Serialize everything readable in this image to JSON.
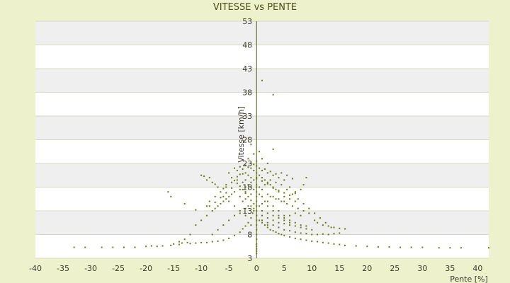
{
  "chart_data": {
    "type": "scatter",
    "title": "VITESSE vs PENTE",
    "xlabel": "Pente [%]",
    "ylabel": "Vitesse [km/h]",
    "xlim": [
      -40,
      42
    ],
    "ylim": [
      3,
      53
    ],
    "x_ticks": [
      "-40",
      "-35",
      "-30",
      "-25",
      "-20",
      "-15",
      "-10",
      "-5",
      "0",
      "5",
      "10",
      "15",
      "20",
      "25",
      "30",
      "35",
      "40"
    ],
    "y_ticks": [
      "3",
      "8",
      "13",
      "18",
      "23",
      "28",
      "33",
      "38",
      "43",
      "48",
      "53"
    ],
    "grid": true,
    "legend": "none",
    "colors": {
      "marker": "#6b7a10",
      "band_light": "#ffffff",
      "band_dark": "#efefef",
      "background": "#eef2cc",
      "axis": "#4d5a10"
    },
    "points": [
      [
        -33,
        5.3
      ],
      [
        -31,
        5.3
      ],
      [
        -28,
        5.3
      ],
      [
        -26,
        5.3
      ],
      [
        -24,
        5.3
      ],
      [
        -22,
        5.3
      ],
      [
        -18,
        5.5
      ],
      [
        -17,
        5.6
      ],
      [
        -15.5,
        5.7
      ],
      [
        -14,
        5.9
      ],
      [
        -12,
        6.1
      ],
      [
        -11,
        6.2
      ],
      [
        -10,
        6.3
      ],
      [
        -9,
        6.3
      ],
      [
        -8,
        6.5
      ],
      [
        -7,
        6.6
      ],
      [
        -6,
        6.8
      ],
      [
        -5,
        7.2
      ],
      [
        -4,
        7.8
      ],
      [
        -3,
        8.5
      ],
      [
        -2.5,
        9.2
      ],
      [
        -2,
        9.8
      ],
      [
        -1.5,
        10.5
      ],
      [
        -1,
        11.5
      ],
      [
        -0.7,
        12.5
      ],
      [
        -0.5,
        13.5
      ],
      [
        -16,
        17
      ],
      [
        -15.5,
        16
      ],
      [
        -13,
        14.5
      ],
      [
        -11,
        13.2
      ],
      [
        -10,
        20.5
      ],
      [
        -9.5,
        20.3
      ],
      [
        -9,
        19.5
      ],
      [
        -8.5,
        20
      ],
      [
        -8,
        19
      ],
      [
        -7.5,
        18.6
      ],
      [
        -7,
        18
      ],
      [
        -6,
        17.7
      ],
      [
        -5.5,
        18.5
      ],
      [
        -5,
        21
      ],
      [
        -4.5,
        20
      ],
      [
        -4,
        19.4
      ],
      [
        -3.5,
        18.8
      ],
      [
        -3,
        18.2
      ],
      [
        -2.5,
        17.5
      ],
      [
        -2,
        16.7
      ],
      [
        -1.5,
        16
      ],
      [
        -1,
        15.2
      ],
      [
        -0.5,
        14.5
      ],
      [
        -4,
        22
      ],
      [
        -3,
        22.3
      ],
      [
        -2,
        22.6
      ],
      [
        -1,
        23
      ],
      [
        -0.5,
        21.5
      ],
      [
        0,
        21
      ],
      [
        0.5,
        20.5
      ],
      [
        1,
        20
      ],
      [
        1.5,
        19.5
      ],
      [
        2,
        19
      ],
      [
        2.5,
        18.5
      ],
      [
        3,
        18
      ],
      [
        3.5,
        17.5
      ],
      [
        4,
        17
      ],
      [
        5,
        16
      ],
      [
        6,
        15.5
      ],
      [
        7,
        15
      ],
      [
        8,
        17.5
      ],
      [
        8.5,
        18.5
      ],
      [
        9,
        20
      ],
      [
        -6,
        16
      ],
      [
        -5,
        15
      ],
      [
        -4,
        14
      ],
      [
        -3,
        13
      ],
      [
        -2,
        12
      ],
      [
        -1,
        10
      ],
      [
        0,
        5
      ],
      [
        0,
        4.5
      ],
      [
        0,
        4
      ],
      [
        0,
        5.5
      ],
      [
        0,
        6
      ],
      [
        0,
        7
      ],
      [
        0,
        8
      ],
      [
        0,
        9
      ],
      [
        0,
        10
      ],
      [
        0,
        11
      ],
      [
        0,
        12
      ],
      [
        0,
        13
      ],
      [
        0.5,
        11
      ],
      [
        1,
        10.5
      ],
      [
        1.5,
        10
      ],
      [
        2,
        9.5
      ],
      [
        2.5,
        9
      ],
      [
        3,
        8.8
      ],
      [
        3.5,
        8.5
      ],
      [
        4,
        8.2
      ],
      [
        4.5,
        8
      ],
      [
        5,
        7.8
      ],
      [
        6,
        7.5
      ],
      [
        7,
        7.2
      ],
      [
        8,
        7
      ],
      [
        9,
        6.8
      ],
      [
        10,
        6.6
      ],
      [
        11,
        6.5
      ],
      [
        12,
        6.3
      ],
      [
        13,
        6.2
      ],
      [
        14,
        6
      ],
      [
        15,
        5.9
      ],
      [
        16,
        5.7
      ],
      [
        18,
        5.6
      ],
      [
        20,
        5.5
      ],
      [
        22,
        5.4
      ],
      [
        24,
        5.4
      ],
      [
        26,
        5.3
      ],
      [
        28,
        5.3
      ],
      [
        30,
        5.3
      ],
      [
        33,
        5.2
      ],
      [
        35,
        5.2
      ],
      [
        37,
        5.2
      ],
      [
        42,
        5.2
      ],
      [
        2,
        10.5
      ],
      [
        3,
        10
      ],
      [
        4,
        9.5
      ],
      [
        5,
        9
      ],
      [
        6,
        8.8
      ],
      [
        7,
        8.5
      ],
      [
        8,
        8.3
      ],
      [
        9,
        8.2
      ],
      [
        10,
        8
      ],
      [
        11,
        8
      ],
      [
        12,
        8.1
      ],
      [
        13,
        8
      ],
      [
        14,
        8.2
      ],
      [
        15,
        8.3
      ],
      [
        1,
        12
      ],
      [
        2,
        11.5
      ],
      [
        3,
        11
      ],
      [
        4,
        10.5
      ],
      [
        5,
        10.3
      ],
      [
        6,
        10
      ],
      [
        7,
        9.8
      ],
      [
        8,
        9.5
      ],
      [
        9,
        9.2
      ],
      [
        10,
        9
      ],
      [
        1,
        40.5
      ],
      [
        3,
        37.5
      ],
      [
        -1,
        27
      ],
      [
        3,
        26
      ],
      [
        1,
        24
      ],
      [
        2,
        23
      ],
      [
        -0.5,
        25
      ],
      [
        0.5,
        25.5
      ],
      [
        -1.5,
        24
      ],
      [
        -2,
        21
      ],
      [
        -3,
        20.7
      ],
      [
        -3.5,
        21.5
      ],
      [
        -4,
        17
      ],
      [
        -4.5,
        16.5
      ],
      [
        -5,
        16
      ],
      [
        -5.5,
        15.5
      ],
      [
        -6,
        15
      ],
      [
        -6.5,
        14.5
      ],
      [
        -7,
        14
      ],
      [
        -7.5,
        13.5
      ],
      [
        -8,
        13
      ],
      [
        -9,
        12
      ],
      [
        -10,
        11
      ],
      [
        -11,
        10
      ],
      [
        -12,
        8
      ],
      [
        -13,
        7
      ],
      [
        -14,
        6.5
      ],
      [
        -2.5,
        15
      ],
      [
        -1.5,
        14
      ],
      [
        -0.5,
        13
      ],
      [
        0.5,
        14
      ],
      [
        1.5,
        15
      ],
      [
        2.5,
        16
      ],
      [
        3.5,
        15.5
      ],
      [
        4.5,
        15
      ],
      [
        5.5,
        14.5
      ],
      [
        6.5,
        14
      ],
      [
        7.5,
        13.5
      ],
      [
        8.5,
        13
      ],
      [
        9.5,
        12.5
      ],
      [
        -3,
        16
      ],
      [
        -2,
        17
      ],
      [
        -1,
        18
      ],
      [
        0,
        18.5
      ],
      [
        1,
        17.5
      ],
      [
        2,
        16.5
      ],
      [
        3,
        16
      ],
      [
        4,
        15.5
      ],
      [
        5,
        15
      ],
      [
        -2,
        19.5
      ],
      [
        -1,
        20
      ],
      [
        0,
        19.8
      ],
      [
        1,
        19.3
      ],
      [
        2,
        18.7
      ],
      [
        3,
        17.8
      ],
      [
        4,
        17.3
      ],
      [
        5,
        16.8
      ],
      [
        6,
        16.3
      ],
      [
        7,
        16.7
      ],
      [
        -3,
        17.5
      ],
      [
        -2,
        18
      ],
      [
        -1,
        19
      ],
      [
        0,
        17
      ],
      [
        1,
        16
      ],
      [
        2,
        15
      ],
      [
        3,
        14
      ],
      [
        4,
        13
      ],
      [
        5,
        12
      ],
      [
        6,
        11
      ],
      [
        7,
        10.5
      ],
      [
        8,
        10
      ],
      [
        9,
        9.8
      ],
      [
        -2,
        15.5
      ],
      [
        -1,
        16.5
      ],
      [
        0,
        16
      ],
      [
        1,
        14.5
      ],
      [
        2,
        14
      ],
      [
        3,
        13
      ],
      [
        4,
        12
      ],
      [
        5,
        11.5
      ],
      [
        6,
        12
      ],
      [
        7,
        12.5
      ],
      [
        8,
        12
      ],
      [
        -1,
        22
      ],
      [
        0,
        22.5
      ],
      [
        1,
        21.5
      ],
      [
        2,
        21
      ],
      [
        3,
        20.5
      ],
      [
        4,
        20
      ],
      [
        5,
        19.5
      ],
      [
        6,
        18
      ],
      [
        7,
        17
      ],
      [
        0,
        15
      ],
      [
        0,
        14
      ],
      [
        1,
        13
      ],
      [
        2,
        12.5
      ],
      [
        3,
        12
      ],
      [
        4,
        11.5
      ],
      [
        5,
        11
      ],
      [
        6,
        10.5
      ],
      [
        0.5,
        16.5
      ],
      [
        -0.5,
        17.5
      ],
      [
        -1.5,
        18.5
      ],
      [
        -2.5,
        19
      ],
      [
        -3.5,
        19.5
      ],
      [
        -4.5,
        19
      ],
      [
        -5.5,
        18
      ],
      [
        -6.5,
        17
      ],
      [
        -7.5,
        16
      ],
      [
        -8.5,
        15
      ],
      [
        -9,
        14
      ],
      [
        -1,
        14
      ],
      [
        -2,
        13.5
      ],
      [
        -3,
        12.5
      ],
      [
        -4,
        12
      ],
      [
        -5,
        11
      ],
      [
        -6,
        10
      ],
      [
        -7,
        9
      ],
      [
        -8,
        8
      ],
      [
        0.5,
        18
      ],
      [
        1.5,
        18.5
      ],
      [
        2.5,
        19.5
      ],
      [
        3.5,
        19
      ],
      [
        4.5,
        18.5
      ],
      [
        5.5,
        17.5
      ],
      [
        6.5,
        16.5
      ],
      [
        7.5,
        15.5
      ],
      [
        8.5,
        14.5
      ],
      [
        9.5,
        13.5
      ],
      [
        10.5,
        12.5
      ],
      [
        11.5,
        11.5
      ],
      [
        12.5,
        10.5
      ],
      [
        13.5,
        9.5
      ],
      [
        -0.5,
        19.5
      ],
      [
        -1.5,
        20.5
      ],
      [
        -2.5,
        20.8
      ],
      [
        -3.5,
        20.2
      ],
      [
        -4.5,
        17.8
      ],
      [
        -5.5,
        16.8
      ],
      [
        -6.5,
        15.8
      ],
      [
        -7.5,
        14.8
      ],
      [
        -8.5,
        14
      ],
      [
        0,
        23.5
      ],
      [
        0.5,
        22
      ],
      [
        1.5,
        21.8
      ],
      [
        2.5,
        21.3
      ],
      [
        3.5,
        20.8
      ],
      [
        4.5,
        21
      ],
      [
        5.5,
        20.5
      ],
      [
        6.5,
        19.8
      ],
      [
        -0.5,
        22.8
      ],
      [
        -1.5,
        22.2
      ],
      [
        -2.5,
        21.8
      ],
      [
        0,
        20
      ],
      [
        0,
        18
      ],
      [
        0,
        12
      ],
      [
        1,
        11
      ],
      [
        2,
        10
      ],
      [
        10.5,
        11
      ],
      [
        11,
        10.5
      ],
      [
        12,
        10
      ],
      [
        13,
        9.8
      ],
      [
        14,
        9.5
      ],
      [
        15,
        9.3
      ],
      [
        16,
        9.2
      ],
      [
        -15,
        6
      ],
      [
        -13.5,
        6.2
      ],
      [
        -12.5,
        6.3
      ],
      [
        -20,
        5.5
      ],
      [
        -19,
        5.6
      ]
    ]
  }
}
